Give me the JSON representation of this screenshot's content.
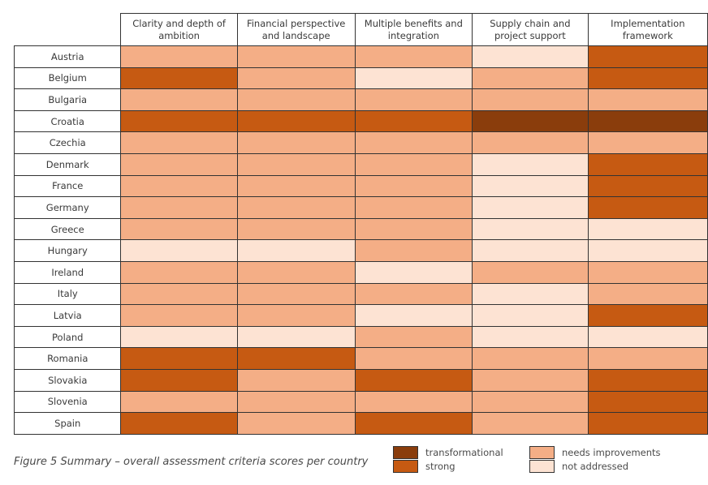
{
  "chart_data": {
    "type": "heatmap",
    "columns": [
      "Clarity and depth of ambition",
      "Financial perspective and landscape",
      "Multiple benefits and integration",
      "Supply chain and project support",
      "Implementation framework"
    ],
    "rows": [
      "Austria",
      "Belgium",
      "Bulgaria",
      "Croatia",
      "Czechia",
      "Denmark",
      "France",
      "Germany",
      "Greece",
      "Hungary",
      "Ireland",
      "Italy",
      "Latvia",
      "Poland",
      "Romania",
      "Slovakia",
      "Slovenia",
      "Spain"
    ],
    "levels": [
      "transformational",
      "strong",
      "needs improvements",
      "not addressed"
    ],
    "values": [
      [
        "needs improvements",
        "needs improvements",
        "needs improvements",
        "not addressed",
        "strong"
      ],
      [
        "strong",
        "needs improvements",
        "not addressed",
        "needs improvements",
        "strong"
      ],
      [
        "needs improvements",
        "needs improvements",
        "needs improvements",
        "needs improvements",
        "needs improvements"
      ],
      [
        "strong",
        "strong",
        "strong",
        "transformational",
        "transformational"
      ],
      [
        "needs improvements",
        "needs improvements",
        "needs improvements",
        "needs improvements",
        "needs improvements"
      ],
      [
        "needs improvements",
        "needs improvements",
        "needs improvements",
        "not addressed",
        "strong"
      ],
      [
        "needs improvements",
        "needs improvements",
        "needs improvements",
        "not addressed",
        "strong"
      ],
      [
        "needs improvements",
        "needs improvements",
        "needs improvements",
        "not addressed",
        "strong"
      ],
      [
        "needs improvements",
        "needs improvements",
        "needs improvements",
        "not addressed",
        "not addressed"
      ],
      [
        "not addressed",
        "not addressed",
        "needs improvements",
        "not addressed",
        "not addressed"
      ],
      [
        "needs improvements",
        "needs improvements",
        "not addressed",
        "needs improvements",
        "needs improvements"
      ],
      [
        "needs improvements",
        "needs improvements",
        "needs improvements",
        "not addressed",
        "needs improvements"
      ],
      [
        "needs improvements",
        "needs improvements",
        "not addressed",
        "not addressed",
        "strong"
      ],
      [
        "not addressed",
        "not addressed",
        "needs improvements",
        "not addressed",
        "not addressed"
      ],
      [
        "strong",
        "strong",
        "needs improvements",
        "needs improvements",
        "needs improvements"
      ],
      [
        "strong",
        "needs improvements",
        "strong",
        "needs improvements",
        "strong"
      ],
      [
        "needs improvements",
        "needs improvements",
        "needs improvements",
        "needs improvements",
        "strong"
      ],
      [
        "strong",
        "needs improvements",
        "strong",
        "needs improvements",
        "strong"
      ]
    ],
    "colors": {
      "transformational": "#8a3d0c",
      "strong": "#c65a12",
      "needs improvements": "#f4ae86",
      "not addressed": "#fde3d3"
    },
    "legend": [
      {
        "label": "transformational"
      },
      {
        "label": "strong"
      },
      {
        "label": "needs improvements"
      },
      {
        "label": "not addressed"
      }
    ]
  },
  "caption": "Figure 5 Summary – overall assessment criteria scores per country"
}
